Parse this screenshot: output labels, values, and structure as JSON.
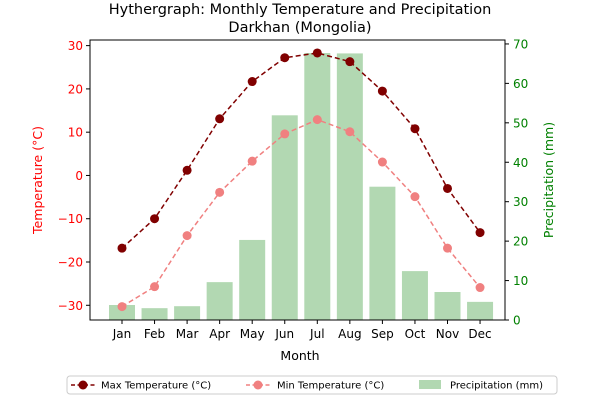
{
  "chart_data": {
    "type": "bar+line",
    "title": "Hythergraph: Monthly Temperature and Precipitation",
    "subtitle": "Darkhan (Mongolia)",
    "xlabel": "Month",
    "ylabel_left": "Temperature (°C)",
    "ylabel_right": "Precipitation (mm)",
    "categories": [
      "Jan",
      "Feb",
      "Mar",
      "Apr",
      "May",
      "Jun",
      "Jul",
      "Aug",
      "Sep",
      "Oct",
      "Nov",
      "Dec"
    ],
    "ylim_left": [
      -33.4,
      31.3
    ],
    "ylim_right": [
      0,
      71
    ],
    "yticks_left": [
      -30,
      -20,
      -10,
      0,
      10,
      20,
      30
    ],
    "yticks_right": [
      0,
      10,
      20,
      30,
      40,
      50,
      60,
      70
    ],
    "grid": false,
    "legend_placement": "bottom-center",
    "series": [
      {
        "name": "Max Temperature (°C)",
        "kind": "line",
        "axis": "left",
        "color": "#800000",
        "values": [
          -16.8,
          -10.0,
          1.2,
          13.1,
          21.7,
          27.2,
          28.3,
          26.3,
          19.5,
          10.8,
          -3.0,
          -13.2
        ]
      },
      {
        "name": "Min Temperature (°C)",
        "kind": "line",
        "axis": "left",
        "color": "#f08080",
        "values": [
          -30.3,
          -25.7,
          -13.9,
          -3.9,
          3.3,
          9.6,
          12.9,
          10.1,
          3.1,
          -4.9,
          -16.8,
          -25.9
        ]
      },
      {
        "name": "Precipitation (mm)",
        "kind": "bar",
        "axis": "right",
        "color": "#b2d8b2",
        "values": [
          3.8,
          3.0,
          3.5,
          9.6,
          20.3,
          51.9,
          67.7,
          67.6,
          33.8,
          12.4,
          7.1,
          4.6
        ]
      }
    ]
  }
}
